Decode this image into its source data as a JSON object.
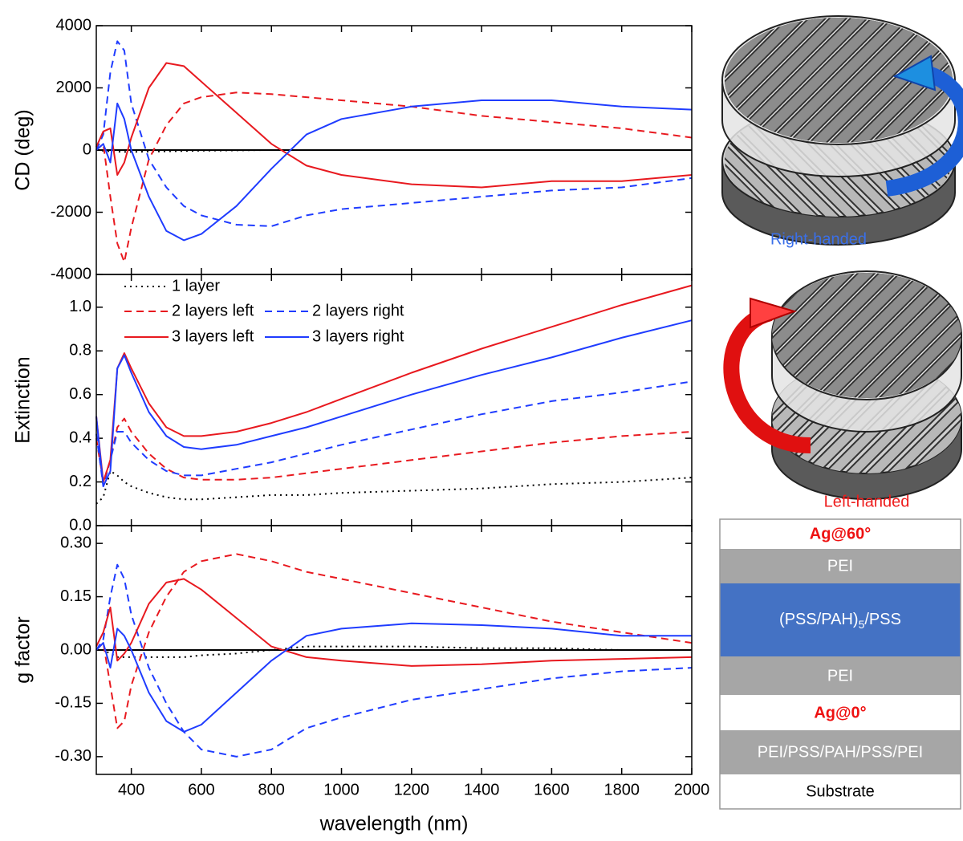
{
  "chart_data": [
    {
      "type": "line",
      "ylabel": "CD (deg)",
      "x": [
        300,
        320,
        340,
        360,
        380,
        400,
        450,
        500,
        550,
        600,
        700,
        800,
        900,
        1000,
        1200,
        1400,
        1600,
        1800,
        2000
      ],
      "xlim": [
        300,
        2000
      ],
      "ylim": [
        -4000,
        4000
      ],
      "yticks": [
        -4000,
        -2000,
        0,
        2000,
        4000
      ],
      "series": [
        {
          "color": "#000000",
          "line_style": "dotted",
          "values": [
            0,
            -20,
            -40,
            -50,
            -60,
            -60,
            -50,
            -40,
            -30,
            -20,
            -10,
            0,
            null,
            null,
            null,
            null,
            null,
            null,
            null
          ]
        },
        {
          "color": "#e8191f",
          "line_style": "dashed",
          "values": [
            0,
            200,
            -1500,
            -3000,
            -3600,
            -2500,
            -300,
            800,
            1500,
            1700,
            1850,
            1800,
            1700,
            1600,
            1400,
            1100,
            900,
            700,
            400
          ]
        },
        {
          "color": "#1f3cff",
          "line_style": "dashed",
          "values": [
            0,
            500,
            2500,
            3500,
            3200,
            1500,
            -300,
            -1200,
            -1800,
            -2100,
            -2400,
            -2450,
            -2100,
            -1900,
            -1700,
            -1500,
            -1300,
            -1200,
            -900
          ]
        },
        {
          "color": "#e8191f",
          "line_style": "solid",
          "values": [
            100,
            600,
            700,
            -800,
            -400,
            400,
            2000,
            2800,
            2700,
            2200,
            1200,
            200,
            -500,
            -800,
            -1100,
            -1200,
            -1000,
            -1000,
            -800
          ]
        },
        {
          "color": "#1f3cff",
          "line_style": "solid",
          "values": [
            0,
            200,
            -400,
            1500,
            1000,
            0,
            -1500,
            -2600,
            -2900,
            -2700,
            -1800,
            -600,
            500,
            1000,
            1400,
            1600,
            1600,
            1400,
            1300
          ]
        }
      ]
    },
    {
      "type": "line",
      "ylabel": "Extinction",
      "legend": "upper left",
      "x": [
        300,
        320,
        340,
        360,
        380,
        400,
        450,
        500,
        550,
        600,
        700,
        800,
        900,
        1000,
        1200,
        1400,
        1600,
        1800,
        2000
      ],
      "xlim": [
        300,
        2000
      ],
      "ylim": [
        0,
        1.15
      ],
      "yticks": [
        {
          "value": 0,
          "label": "0.0"
        },
        0.2,
        0.4,
        0.6,
        0.8,
        {
          "value": 1,
          "label": "1.0"
        }
      ],
      "series": [
        {
          "name": "1 layer",
          "color": "#000000",
          "line_style": "dotted",
          "values": [
            0.1,
            0.13,
            0.25,
            0.23,
            0.2,
            0.18,
            0.15,
            0.13,
            0.12,
            0.12,
            0.13,
            0.14,
            0.14,
            0.15,
            0.16,
            0.17,
            0.19,
            0.2,
            0.22
          ]
        },
        {
          "name": "2 layers left",
          "color": "#e8191f",
          "line_style": "dashed",
          "values": [
            0.4,
            0.2,
            0.3,
            0.45,
            0.49,
            0.43,
            0.33,
            0.26,
            0.22,
            0.21,
            0.21,
            0.22,
            0.24,
            0.26,
            0.3,
            0.34,
            0.38,
            0.41,
            0.43
          ]
        },
        {
          "name": "2 layers right",
          "color": "#1f3cff",
          "line_style": "dashed",
          "values": [
            0.42,
            0.18,
            0.3,
            0.43,
            0.43,
            0.38,
            0.3,
            0.25,
            0.23,
            0.23,
            0.26,
            0.29,
            0.33,
            0.37,
            0.44,
            0.51,
            0.57,
            0.61,
            0.66
          ]
        },
        {
          "name": "3 layers left",
          "color": "#e8191f",
          "line_style": "solid",
          "values": [
            0.5,
            0.2,
            0.3,
            0.72,
            0.79,
            0.72,
            0.56,
            0.45,
            0.41,
            0.41,
            0.43,
            0.47,
            0.52,
            0.58,
            0.7,
            0.81,
            0.91,
            1.01,
            1.1
          ]
        },
        {
          "name": "3 layers right",
          "color": "#1f3cff",
          "line_style": "solid",
          "values": [
            0.5,
            0.18,
            0.25,
            0.72,
            0.78,
            0.7,
            0.52,
            0.41,
            0.36,
            0.35,
            0.37,
            0.41,
            0.45,
            0.5,
            0.6,
            0.69,
            0.77,
            0.86,
            0.94
          ]
        }
      ]
    },
    {
      "type": "line",
      "ylabel": "g factor",
      "xlabel": "wavelength (nm)",
      "x": [
        300,
        320,
        340,
        360,
        380,
        400,
        450,
        500,
        550,
        600,
        700,
        800,
        900,
        1000,
        1200,
        1400,
        1600,
        1800,
        2000
      ],
      "xlim": [
        300,
        2000
      ],
      "xticks": [
        400,
        600,
        800,
        1000,
        1200,
        1400,
        1600,
        1800,
        2000
      ],
      "ylim": [
        -0.35,
        0.35
      ],
      "yticks": [
        {
          "value": -0.3,
          "label": "-0.30"
        },
        {
          "value": -0.15,
          "label": "-0.15"
        },
        {
          "value": 0,
          "label": "0.00"
        },
        {
          "value": 0.15,
          "label": "0.15"
        },
        {
          "value": 0.3,
          "label": "0.30"
        }
      ],
      "series": [
        {
          "color": "#000000",
          "line_style": "dotted",
          "values": [
            0,
            0,
            -0.01,
            -0.02,
            -0.02,
            -0.02,
            -0.02,
            -0.02,
            -0.02,
            -0.015,
            -0.01,
            0,
            0.01,
            0.01,
            0.01,
            0.005,
            0.005,
            0,
            0
          ]
        },
        {
          "color": "#e8191f",
          "line_style": "dashed",
          "values": [
            0,
            0.02,
            -0.1,
            -0.22,
            -0.2,
            -0.1,
            0.05,
            0.15,
            0.22,
            0.25,
            0.27,
            0.25,
            0.22,
            0.2,
            0.16,
            0.12,
            0.08,
            0.05,
            0.02
          ]
        },
        {
          "color": "#1f3cff",
          "line_style": "dashed",
          "values": [
            0,
            0.03,
            0.15,
            0.24,
            0.2,
            0.1,
            -0.05,
            -0.15,
            -0.23,
            -0.28,
            -0.3,
            -0.28,
            -0.22,
            -0.19,
            -0.14,
            -0.11,
            -0.08,
            -0.06,
            -0.05
          ]
        },
        {
          "color": "#e8191f",
          "line_style": "solid",
          "values": [
            0.01,
            0.05,
            0.12,
            -0.03,
            -0.01,
            0.02,
            0.13,
            0.19,
            0.2,
            0.17,
            0.09,
            0.01,
            -0.02,
            -0.03,
            -0.045,
            -0.04,
            -0.03,
            -0.025,
            -0.02
          ]
        },
        {
          "color": "#1f3cff",
          "line_style": "solid",
          "values": [
            0,
            0.02,
            -0.05,
            0.06,
            0.04,
            0,
            -0.12,
            -0.2,
            -0.23,
            -0.21,
            -0.12,
            -0.03,
            0.04,
            0.06,
            0.075,
            0.07,
            0.06,
            0.04,
            0.04
          ]
        }
      ]
    }
  ],
  "diagram": {
    "right_label": "Right-handed",
    "left_label": "Left-handed",
    "layers": [
      {
        "label": "Ag@60°"
      },
      {
        "label": "PEI"
      },
      {
        "label": [
          "(PSS/PAH)",
          "5",
          "/PSS"
        ]
      },
      {
        "label": "PEI"
      },
      {
        "label": "Ag@0°"
      },
      {
        "label": "PEI/PSS/PAH/PSS/PEI"
      },
      {
        "label": "Substrate"
      }
    ]
  }
}
